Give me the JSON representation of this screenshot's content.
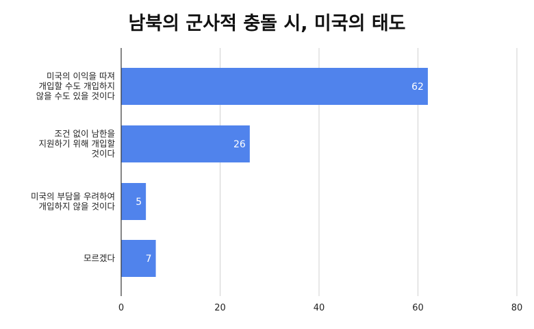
{
  "chart_data": {
    "type": "bar",
    "orientation": "horizontal",
    "title": "남북의 군사적 충돌 시, 미국의 태도",
    "xlabel": "",
    "ylabel": "",
    "categories": [
      [
        "미국의 이익을 따져",
        "개입할 수도 개입하지",
        "않을 수도 있을 것이다"
      ],
      [
        "조건 없이 남한을",
        "지원하기 위해 개입할",
        "것이다"
      ],
      [
        "미국의 부담을 우려하여",
        "개입하지 않을 것이다"
      ],
      [
        "모르겠다"
      ]
    ],
    "values": [
      62,
      26,
      5,
      7
    ],
    "xlim": [
      0,
      80
    ],
    "ticks": [
      0,
      20,
      40,
      60,
      80
    ],
    "grid": "vertical",
    "legend": "none",
    "bar_color": "#5083ec"
  }
}
